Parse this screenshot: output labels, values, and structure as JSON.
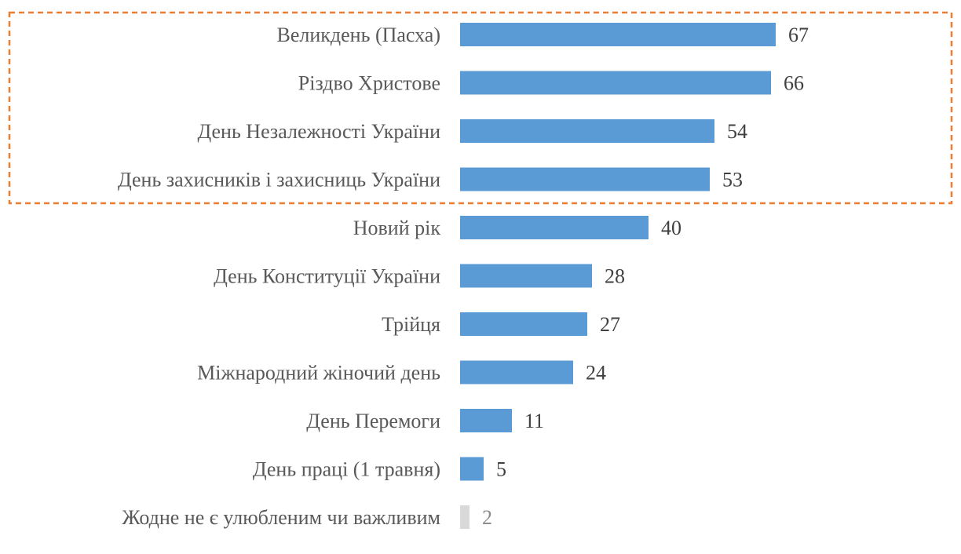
{
  "chart_data": {
    "type": "bar",
    "orientation": "horizontal",
    "categories": [
      "Великдень (Пасха)",
      "Різдво Христове",
      "День Незалежності України",
      "День захисників і захисниць України",
      "Новий рік",
      "День Конституції України",
      "Трійця",
      "Міжнародний жіночий день",
      "День Перемоги",
      "День праці (1 травня)",
      "Жодне не є улюбленим чи важливим"
    ],
    "values": [
      67,
      66,
      54,
      53,
      40,
      28,
      27,
      24,
      11,
      5,
      2
    ],
    "xlim": [
      0,
      100
    ],
    "grid": false,
    "legend": "none",
    "highlighted_categories": [
      0,
      1,
      2,
      3
    ]
  },
  "colors": {
    "bar": "#5b9bd5",
    "bar_muted": "#d9d9d9",
    "highlight_box": "#ed7d31"
  }
}
